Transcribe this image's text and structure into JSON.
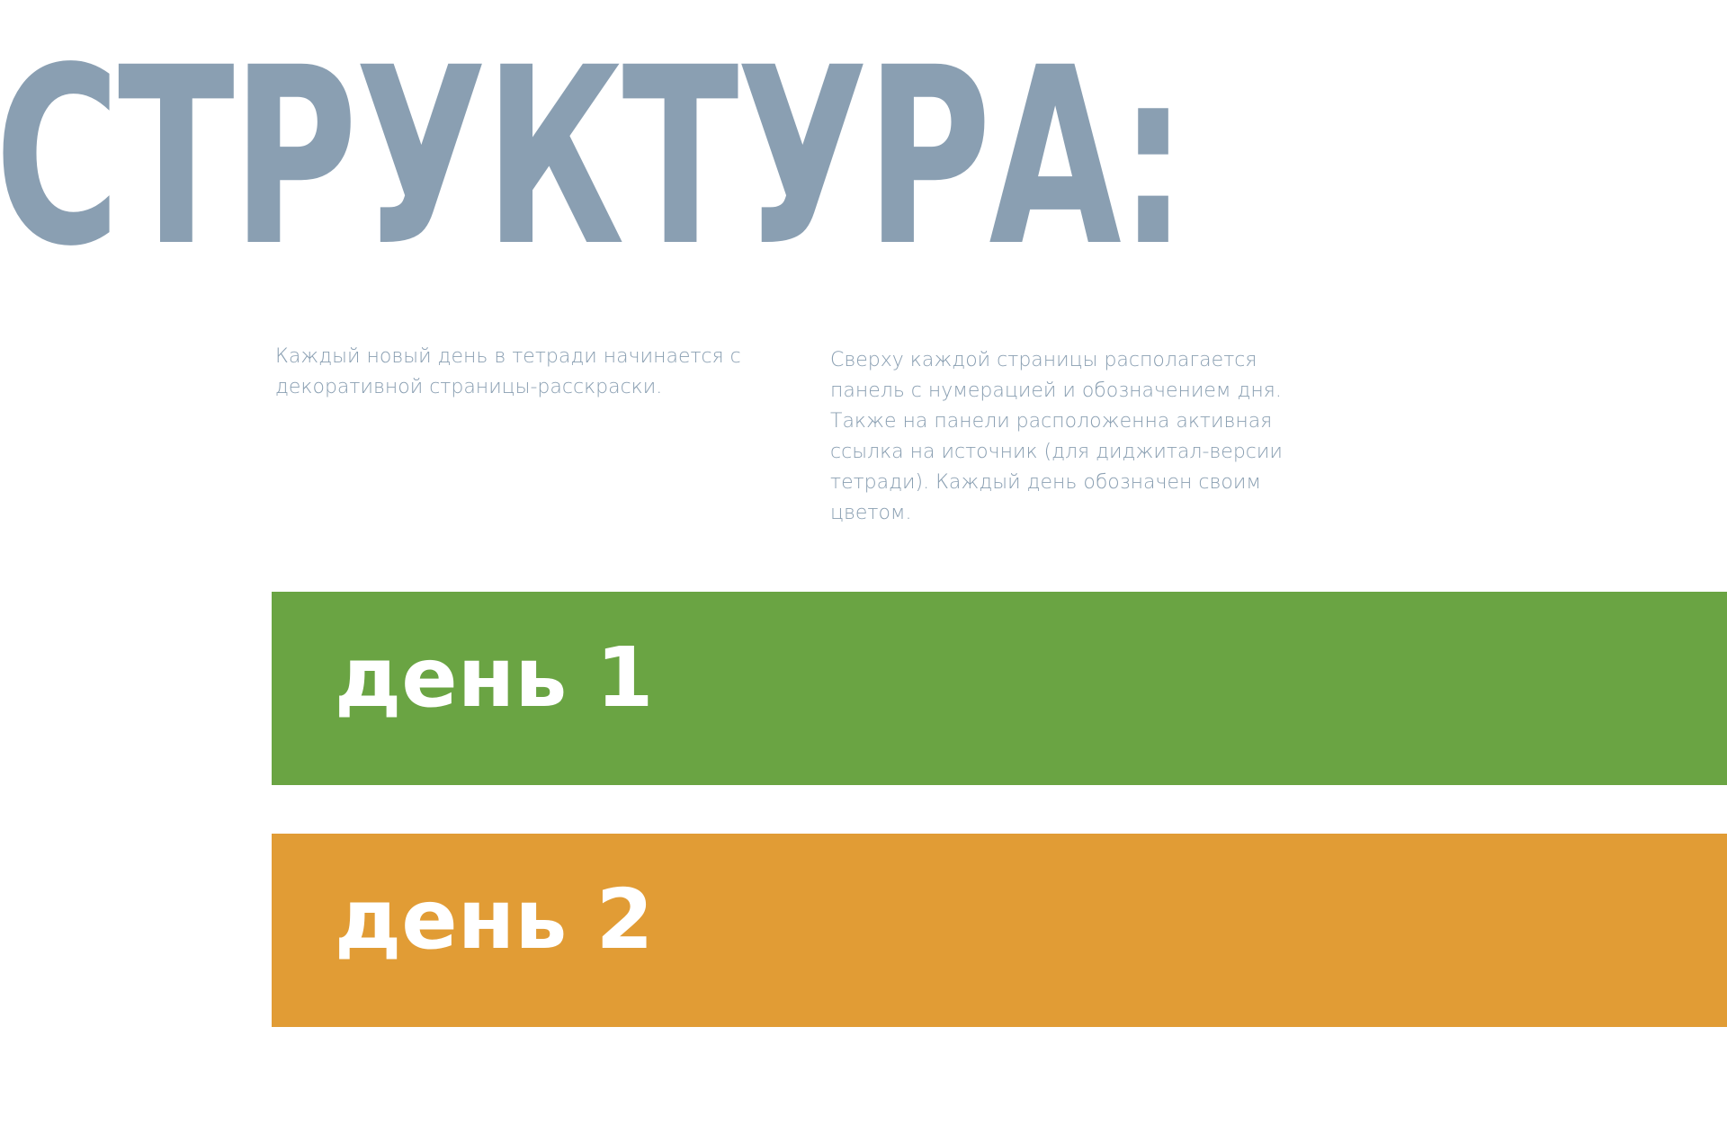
{
  "title": "СТРУКТУРА:",
  "paragraphs": [
    "Каждый новый день в тетради начинается с декоративной страницы-расскраски.",
    "Сверху каждой страницы располагается панель с нумерацией и обозначением дня. Также на панели расположенна активная ссылка на источник (для диджитал-версии тетради). Каждый день обозначен своим цветом."
  ],
  "days": [
    {
      "label": "день 1",
      "color": "#6aa443"
    },
    {
      "label": "день 2",
      "color": "#e19c35"
    }
  ],
  "colors": {
    "title": "#8a9fb2",
    "text": "#8a9fb2",
    "background": "#ffffff"
  }
}
